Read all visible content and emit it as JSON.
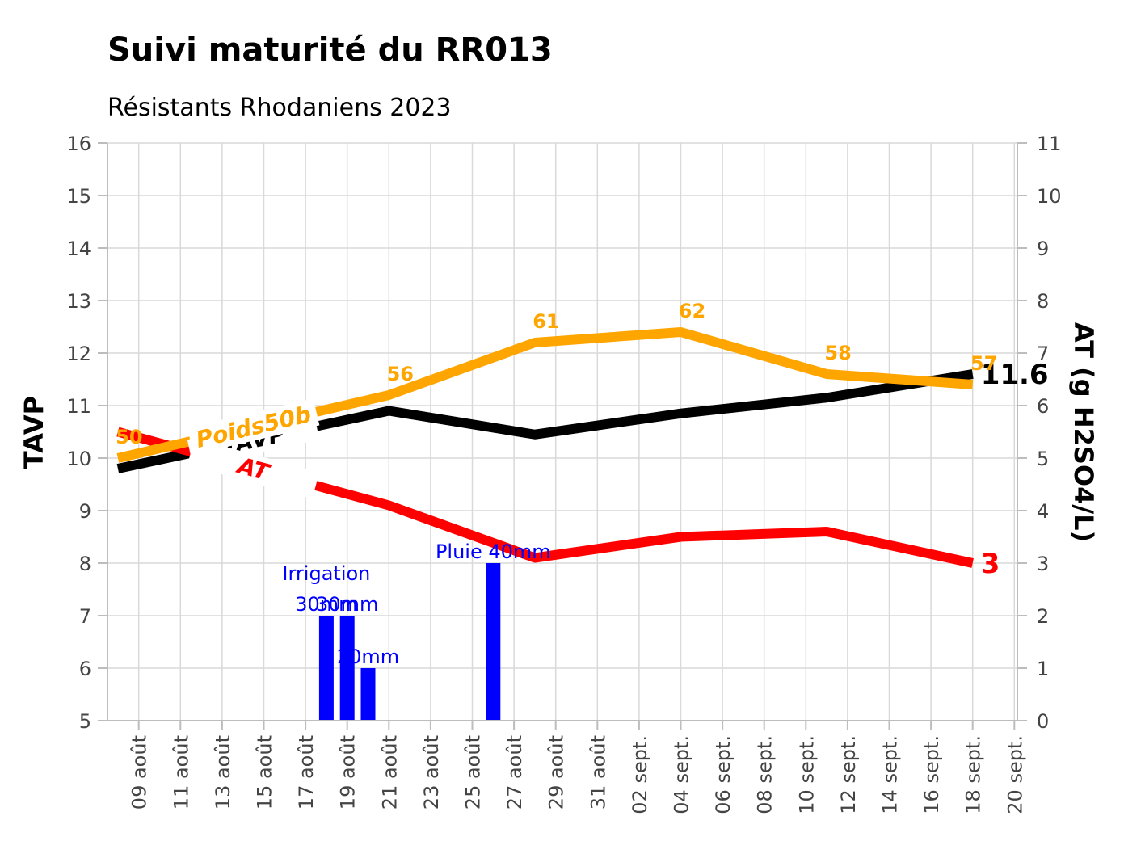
{
  "chart_data": {
    "type": "line",
    "title": "Suivi maturité du RR013",
    "subtitle": "Résistants Rhodaniens 2023",
    "ylabel_left": "TAVP",
    "ylabel_right": "AT (g H2SO4/L)",
    "ylim_left": [
      5,
      16
    ],
    "ylim_right": [
      0,
      11
    ],
    "yticks_left": [
      "5",
      "6",
      "7",
      "8",
      "9",
      "10",
      "11",
      "12",
      "13",
      "14",
      "15",
      "16"
    ],
    "yticks_right": [
      "0",
      "1",
      "2",
      "3",
      "4",
      "5",
      "6",
      "7",
      "8",
      "9",
      "10",
      "11"
    ],
    "x_ticks": [
      "09 août",
      "11 août",
      "13 août",
      "15 août",
      "17 août",
      "19 août",
      "21 août",
      "23 août",
      "25 août",
      "27 août",
      "29 août",
      "31 août",
      "02 sept.",
      "04 sept.",
      "06 sept.",
      "08 sept.",
      "10 sept.",
      "12 sept.",
      "14 sept.",
      "16 sept.",
      "18 sept.",
      "20 sept."
    ],
    "grid": true,
    "series": [
      {
        "name": "TAVP",
        "axis": "left",
        "color": "#000000",
        "x": [
          "2023-08-08",
          "2023-08-21",
          "2023-08-28",
          "2023-09-04",
          "2023-09-11",
          "2023-09-18"
        ],
        "y": [
          9.8,
          10.9,
          10.45,
          10.85,
          11.15,
          11.6
        ],
        "end_label": "11.6"
      },
      {
        "name": "AT",
        "axis": "right",
        "color": "#ff0000",
        "x": [
          "2023-08-08",
          "2023-08-21",
          "2023-08-28",
          "2023-09-04",
          "2023-09-11",
          "2023-09-18"
        ],
        "y": [
          5.5,
          4.1,
          3.1,
          3.5,
          3.6,
          3.0
        ],
        "end_label": "3"
      },
      {
        "name": "Poids50b",
        "axis": "left",
        "color": "#ffa500",
        "x": [
          "2023-08-08",
          "2023-08-21",
          "2023-08-28",
          "2023-09-04",
          "2023-09-11",
          "2023-09-18"
        ],
        "y": [
          10.0,
          11.2,
          12.2,
          12.4,
          11.6,
          11.4
        ],
        "point_labels": [
          "50",
          "56",
          "61",
          "62",
          "58",
          "57"
        ]
      }
    ],
    "bars": {
      "axis": "left",
      "color": "#0000ff",
      "items": [
        {
          "x": "2023-08-18",
          "y": 7,
          "label": "Irrigation\n30mm"
        },
        {
          "x": "2023-08-19",
          "y": 7,
          "label": "30mm"
        },
        {
          "x": "2023-08-20",
          "y": 6,
          "label": "20mm"
        },
        {
          "x": "2023-08-26",
          "y": 8,
          "label": "Pluie 40mm"
        }
      ]
    }
  }
}
